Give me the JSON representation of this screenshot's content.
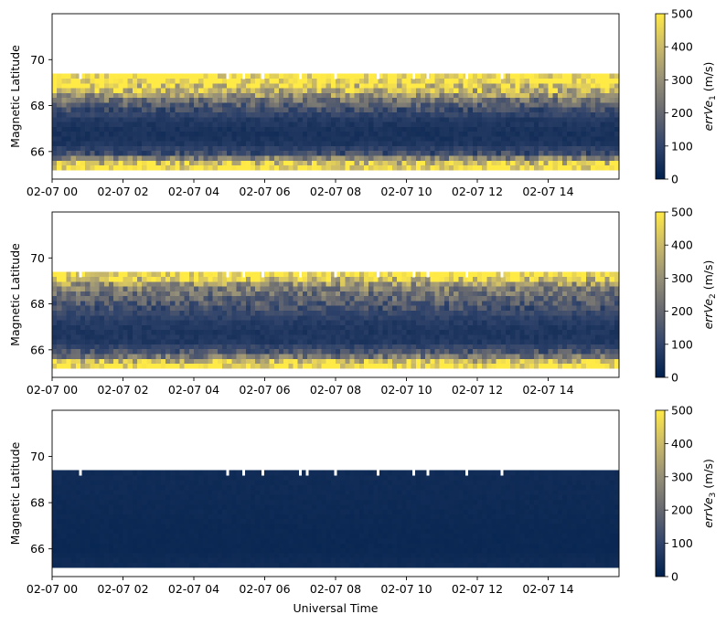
{
  "chart_data": [
    {
      "type": "heatmap",
      "panel_id": "panel-1",
      "ylabel": "Magnetic Latitude",
      "xlabel": "",
      "x_tick_labels": [
        "02-07 00",
        "02-07 02",
        "02-07 04",
        "02-07 06",
        "02-07 08",
        "02-07 10",
        "02-07 12",
        "02-07 14"
      ],
      "x_tick_hours": [
        0,
        2,
        4,
        6,
        8,
        10,
        12,
        14
      ],
      "xlim_hours": [
        0,
        16
      ],
      "y_tick_labels": [
        "66",
        "68",
        "70"
      ],
      "y_ticks": [
        66,
        68,
        70
      ],
      "ylim": [
        64.8,
        72.0
      ],
      "data_lat_range": [
        65.2,
        69.4
      ],
      "colorbar": {
        "label_main": "errVe",
        "label_sub": "1",
        "label_unit": " (m/s)",
        "min": 0,
        "max": 500,
        "ticks": [
          "0",
          "100",
          "200",
          "300",
          "400",
          "500"
        ],
        "colormap": "cividis",
        "colors": [
          "#00204d",
          "#31446b",
          "#666870",
          "#958f78",
          "#cbba69",
          "#ffea46"
        ]
      },
      "profile": [
        {
          "lat": 65.4,
          "value": 500
        },
        {
          "lat": 65.9,
          "value": 130
        },
        {
          "lat": 66.4,
          "value": 55
        },
        {
          "lat": 66.9,
          "value": 50
        },
        {
          "lat": 67.4,
          "value": 70
        },
        {
          "lat": 67.8,
          "value": 120
        },
        {
          "lat": 68.2,
          "value": 220
        },
        {
          "lat": 68.7,
          "value": 400
        },
        {
          "lat": 69.1,
          "value": 500
        }
      ],
      "gap_hours": [
        0.8,
        4.95,
        5.4,
        5.95,
        7.0,
        8.0,
        9.2,
        10.2,
        10.6,
        11.7,
        12.7
      ]
    },
    {
      "type": "heatmap",
      "panel_id": "panel-2",
      "ylabel": "Magnetic Latitude",
      "xlabel": "",
      "x_tick_labels": [
        "02-07 00",
        "02-07 02",
        "02-07 04",
        "02-07 06",
        "02-07 08",
        "02-07 10",
        "02-07 12",
        "02-07 14"
      ],
      "x_tick_hours": [
        0,
        2,
        4,
        6,
        8,
        10,
        12,
        14
      ],
      "xlim_hours": [
        0,
        16
      ],
      "y_tick_labels": [
        "66",
        "68",
        "70"
      ],
      "y_ticks": [
        66,
        68,
        70
      ],
      "ylim": [
        64.8,
        72.0
      ],
      "data_lat_range": [
        65.2,
        69.4
      ],
      "colorbar": {
        "label_main": "errVe",
        "label_sub": "2",
        "label_unit": " (m/s)",
        "min": 0,
        "max": 500,
        "ticks": [
          "0",
          "100",
          "200",
          "300",
          "400",
          "500"
        ],
        "colormap": "cividis",
        "colors": [
          "#00204d",
          "#31446b",
          "#666870",
          "#958f78",
          "#cbba69",
          "#ffea46"
        ]
      },
      "profile": [
        {
          "lat": 65.4,
          "value": 500
        },
        {
          "lat": 65.8,
          "value": 180
        },
        {
          "lat": 66.3,
          "value": 70
        },
        {
          "lat": 66.8,
          "value": 60
        },
        {
          "lat": 67.3,
          "value": 80
        },
        {
          "lat": 67.8,
          "value": 130
        },
        {
          "lat": 68.3,
          "value": 200
        },
        {
          "lat": 68.8,
          "value": 280
        },
        {
          "lat": 69.2,
          "value": 500
        }
      ],
      "gap_hours": [
        0.8,
        4.95,
        5.4,
        5.95,
        7.0,
        8.0,
        9.2,
        10.2,
        10.6,
        11.7,
        12.7
      ]
    },
    {
      "type": "heatmap",
      "panel_id": "panel-3",
      "ylabel": "Magnetic Latitude",
      "xlabel": "Universal Time",
      "x_tick_labels": [
        "02-07 00",
        "02-07 02",
        "02-07 04",
        "02-07 06",
        "02-07 08",
        "02-07 10",
        "02-07 12",
        "02-07 14"
      ],
      "x_tick_hours": [
        0,
        2,
        4,
        6,
        8,
        10,
        12,
        14
      ],
      "xlim_hours": [
        0,
        16
      ],
      "y_tick_labels": [
        "66",
        "68",
        "70"
      ],
      "y_ticks": [
        66,
        68,
        70
      ],
      "ylim": [
        64.8,
        72.0
      ],
      "data_lat_range": [
        65.2,
        69.4
      ],
      "colorbar": {
        "label_main": "errVe",
        "label_sub": "3",
        "label_unit": " (m/s)",
        "min": 0,
        "max": 500,
        "ticks": [
          "0",
          "100",
          "200",
          "300",
          "400",
          "500"
        ],
        "colormap": "cividis",
        "colors": [
          "#00204d",
          "#31446b",
          "#666870",
          "#958f78",
          "#cbba69",
          "#ffea46"
        ]
      },
      "profile": [
        {
          "lat": 65.4,
          "value": 30
        },
        {
          "lat": 66.0,
          "value": 22
        },
        {
          "lat": 67.0,
          "value": 24
        },
        {
          "lat": 68.0,
          "value": 28
        },
        {
          "lat": 69.2,
          "value": 32
        }
      ],
      "gap_hours": [
        0.8,
        4.95,
        5.4,
        5.95,
        7.0,
        7.2,
        8.0,
        9.2,
        10.2,
        10.6,
        11.7,
        12.7
      ]
    }
  ]
}
